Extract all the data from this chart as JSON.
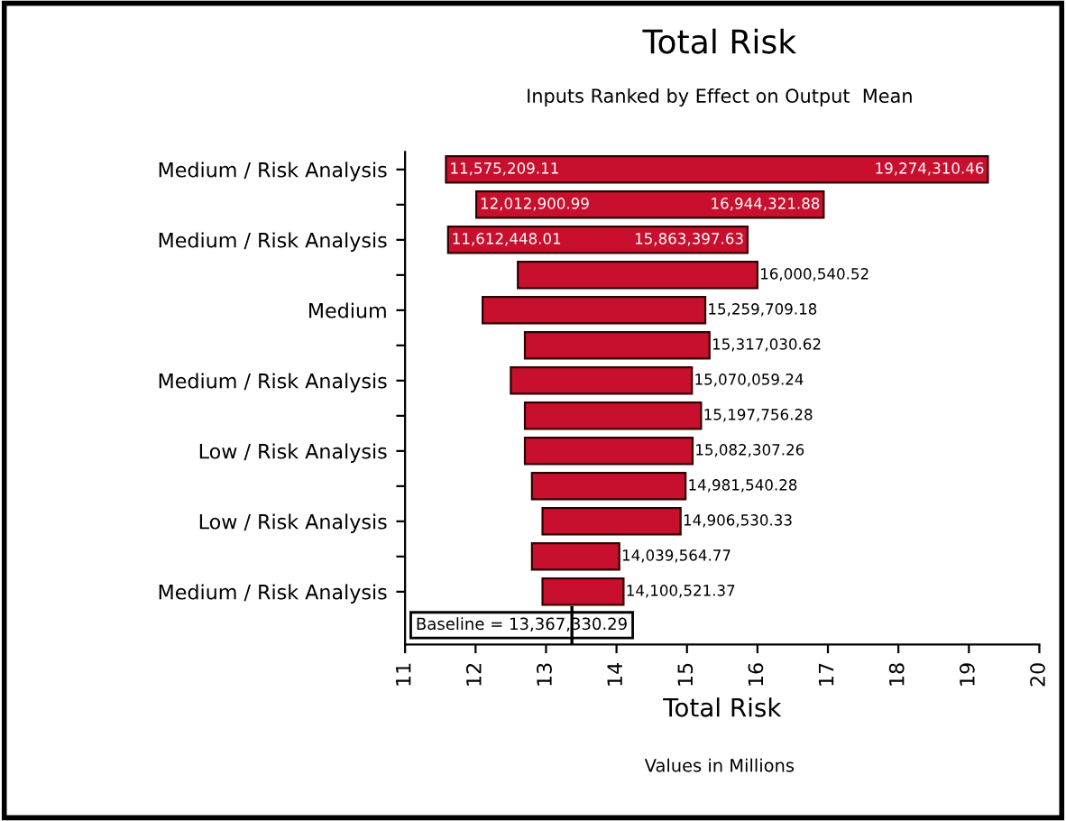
{
  "chart_data": {
    "type": "bar",
    "orientation": "horizontal",
    "title": "Total Risk",
    "subtitle": "Inputs Ranked by Effect on Output  Mean",
    "xlabel": "Total Risk",
    "categories": [
      "Medium / Risk Analysis",
      null,
      "Medium / Risk Analysis",
      null,
      "Medium",
      null,
      "Medium / Risk Analysis",
      null,
      "Low / Risk Analysis",
      null,
      "Low / Risk Analysis",
      null,
      "Medium / Risk Analysis"
    ],
    "series": [
      {
        "color": "#c8102e",
        "base": [
          11.58,
          12.01,
          11.61,
          12.6,
          12.1,
          12.7,
          12.5,
          12.7,
          12.7,
          12.8,
          12.95,
          12.8,
          12.95
        ],
        "values": [
          7.69,
          4.93,
          4.25,
          3.4,
          3.16,
          2.62,
          2.57,
          2.5,
          2.38,
          2.18,
          1.96,
          1.24,
          1.15
        ]
      }
    ],
    "xlim": [
      11,
      20
    ],
    "xticks": [
      11,
      12,
      13,
      14,
      15,
      16,
      17,
      18,
      19,
      20
    ],
    "ref_lines": [
      {
        "axis": "x",
        "value": 13.36733029,
        "label": "Baseline = 13,367,330.29"
      }
    ],
    "annotations": [
      "Values in Millions",
      {
        "text": "11,575,209.11",
        "x": 11.58
      },
      {
        "text": "12,012,900.99",
        "x": 12.01
      },
      {
        "text": "11,612,448.01",
        "x": 11.61
      },
      {
        "text": "19,274,310.46",
        "x": 19.27
      },
      {
        "text": "16,944,321.88",
        "x": 16.94
      },
      {
        "text": "15,863,397.63",
        "x": 15.86
      },
      {
        "text": "16,000,540.52",
        "x": 16.0
      },
      {
        "text": "15,259,709.18",
        "x": 15.26
      },
      {
        "text": "15,317,030.62",
        "x": 15.32
      },
      {
        "text": "15,070,059.24",
        "x": 15.07
      },
      {
        "text": "15,197,756.28",
        "x": 15.2
      },
      {
        "text": "15,082,307.26",
        "x": 15.08
      },
      {
        "text": "14,981,540.28",
        "x": 14.98
      },
      {
        "text": "14,906,530.33",
        "x": 14.91
      },
      {
        "text": "14,039,564.77",
        "x": 14.04
      },
      {
        "text": "14,100,521.37",
        "x": 14.1
      }
    ],
    "grid": false,
    "legend": false
  }
}
